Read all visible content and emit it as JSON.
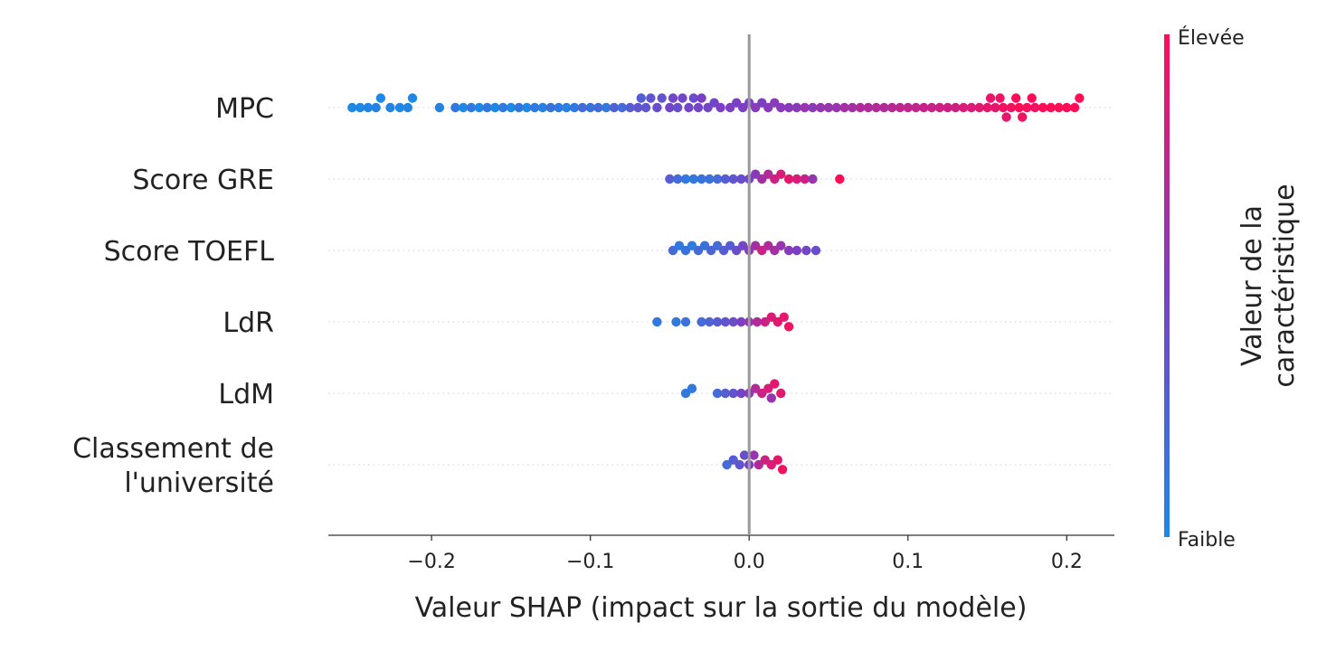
{
  "chart_data": {
    "type": "scatter",
    "subtype": "shap-beeswarm",
    "xlabel": "Valeur SHAP (impact sur la sortie du modèle)",
    "xlim": [
      -0.265,
      0.23
    ],
    "xticks": [
      -0.2,
      -0.1,
      0.0,
      0.1,
      0.2
    ],
    "xtick_labels": [
      "−0.2",
      "−0.1",
      "0.0",
      "0.1",
      "0.2"
    ],
    "zero_line": true,
    "grid": false,
    "colorbar": {
      "title_lines": [
        "Valeur de la",
        "caractéristique"
      ],
      "high_label": "Élevée",
      "low_label": "Faible",
      "low_color": "#1E88E5",
      "mid_color": "#7C3FC4",
      "high_color": "#FF0D57"
    },
    "features": [
      {
        "label_lines": [
          "MPC"
        ],
        "points": [
          [
            -0.25,
            0.0
          ],
          [
            -0.245,
            0.0
          ],
          [
            -0.24,
            0.02
          ],
          [
            -0.235,
            0.05
          ],
          [
            -0.232,
            0.0
          ],
          [
            -0.226,
            0.02
          ],
          [
            -0.22,
            0.0
          ],
          [
            -0.215,
            0.03
          ],
          [
            -0.212,
            0.0
          ],
          [
            -0.195,
            0.05
          ],
          [
            -0.185,
            0.1
          ],
          [
            -0.18,
            0.0
          ],
          [
            -0.175,
            0.1
          ],
          [
            -0.17,
            0.0
          ],
          [
            -0.165,
            0.1
          ],
          [
            -0.16,
            0.0
          ],
          [
            -0.155,
            0.1
          ],
          [
            -0.15,
            0.0
          ],
          [
            -0.145,
            0.12
          ],
          [
            -0.14,
            0.0
          ],
          [
            -0.135,
            0.1
          ],
          [
            -0.13,
            0.05
          ],
          [
            -0.125,
            0.15
          ],
          [
            -0.12,
            0.1
          ],
          [
            -0.115,
            0.05
          ],
          [
            -0.11,
            0.1
          ],
          [
            -0.105,
            0.2
          ],
          [
            -0.1,
            0.15
          ],
          [
            -0.095,
            0.2
          ],
          [
            -0.09,
            0.1
          ],
          [
            -0.085,
            0.25
          ],
          [
            -0.08,
            0.2
          ],
          [
            -0.075,
            0.3
          ],
          [
            -0.07,
            0.35
          ],
          [
            -0.068,
            0.3
          ],
          [
            -0.065,
            0.35
          ],
          [
            -0.062,
            0.35
          ],
          [
            -0.058,
            0.4
          ],
          [
            -0.055,
            0.35
          ],
          [
            -0.05,
            0.45
          ],
          [
            -0.048,
            0.45
          ],
          [
            -0.045,
            0.4
          ],
          [
            -0.042,
            0.45
          ],
          [
            -0.038,
            0.45
          ],
          [
            -0.035,
            0.4
          ],
          [
            -0.032,
            0.45
          ],
          [
            -0.03,
            0.5
          ],
          [
            -0.026,
            0.45
          ],
          [
            -0.022,
            0.45
          ],
          [
            -0.018,
            0.5
          ],
          [
            -0.012,
            0.5
          ],
          [
            -0.008,
            0.5
          ],
          [
            -0.004,
            0.5
          ],
          [
            0.0,
            0.5
          ],
          [
            0.004,
            0.55
          ],
          [
            0.008,
            0.5
          ],
          [
            0.012,
            0.55
          ],
          [
            0.016,
            0.55
          ],
          [
            0.02,
            0.55
          ],
          [
            0.025,
            0.55
          ],
          [
            0.03,
            0.55
          ],
          [
            0.035,
            0.6
          ],
          [
            0.04,
            0.55
          ],
          [
            0.045,
            0.6
          ],
          [
            0.05,
            0.6
          ],
          [
            0.055,
            0.6
          ],
          [
            0.06,
            0.65
          ],
          [
            0.065,
            0.65
          ],
          [
            0.07,
            0.7
          ],
          [
            0.075,
            0.7
          ],
          [
            0.08,
            0.7
          ],
          [
            0.085,
            0.7
          ],
          [
            0.09,
            0.72
          ],
          [
            0.095,
            0.75
          ],
          [
            0.1,
            0.75
          ],
          [
            0.105,
            0.75
          ],
          [
            0.11,
            0.78
          ],
          [
            0.115,
            0.78
          ],
          [
            0.12,
            0.8
          ],
          [
            0.125,
            0.8
          ],
          [
            0.13,
            0.8
          ],
          [
            0.135,
            0.85
          ],
          [
            0.14,
            0.85
          ],
          [
            0.145,
            0.88
          ],
          [
            0.15,
            0.9
          ],
          [
            0.152,
            0.92
          ],
          [
            0.155,
            0.9
          ],
          [
            0.158,
            0.95
          ],
          [
            0.16,
            0.95
          ],
          [
            0.162,
            0.9
          ],
          [
            0.165,
            0.95
          ],
          [
            0.168,
            0.98
          ],
          [
            0.17,
            1.0
          ],
          [
            0.172,
            0.95
          ],
          [
            0.175,
            0.98
          ],
          [
            0.178,
            1.0
          ],
          [
            0.18,
            0.95
          ],
          [
            0.185,
            1.0
          ],
          [
            0.19,
            1.0
          ],
          [
            0.195,
            1.0
          ],
          [
            0.2,
            1.0
          ],
          [
            0.205,
            1.0
          ],
          [
            0.208,
            1.0
          ]
        ]
      },
      {
        "label_lines": [
          "Score GRE"
        ],
        "points": [
          [
            -0.05,
            0.3
          ],
          [
            -0.045,
            0.2
          ],
          [
            -0.04,
            0.1
          ],
          [
            -0.035,
            0.1
          ],
          [
            -0.03,
            0.15
          ],
          [
            -0.025,
            0.15
          ],
          [
            -0.02,
            0.2
          ],
          [
            -0.015,
            0.3
          ],
          [
            -0.01,
            0.35
          ],
          [
            -0.005,
            0.4
          ],
          [
            0.0,
            0.45
          ],
          [
            0.004,
            0.55
          ],
          [
            0.008,
            0.65
          ],
          [
            0.012,
            0.7
          ],
          [
            0.016,
            0.8
          ],
          [
            0.02,
            0.85
          ],
          [
            0.025,
            0.9
          ],
          [
            0.03,
            0.85
          ],
          [
            0.035,
            0.8
          ],
          [
            0.04,
            0.6
          ],
          [
            0.057,
            1.0
          ]
        ]
      },
      {
        "label_lines": [
          "Score TOEFL"
        ],
        "points": [
          [
            -0.048,
            0.2
          ],
          [
            -0.044,
            0.1
          ],
          [
            -0.04,
            0.15
          ],
          [
            -0.036,
            0.1
          ],
          [
            -0.032,
            0.2
          ],
          [
            -0.028,
            0.15
          ],
          [
            -0.024,
            0.25
          ],
          [
            -0.02,
            0.2
          ],
          [
            -0.016,
            0.3
          ],
          [
            -0.012,
            0.3
          ],
          [
            -0.008,
            0.4
          ],
          [
            -0.004,
            0.45
          ],
          [
            0.0,
            0.55
          ],
          [
            0.004,
            0.65
          ],
          [
            0.008,
            0.8
          ],
          [
            0.012,
            0.7
          ],
          [
            0.016,
            0.65
          ],
          [
            0.02,
            0.6
          ],
          [
            0.025,
            0.55
          ],
          [
            0.03,
            0.5
          ],
          [
            0.036,
            0.45
          ],
          [
            0.042,
            0.4
          ]
        ]
      },
      {
        "label_lines": [
          "LdR"
        ],
        "points": [
          [
            -0.058,
            0.1
          ],
          [
            -0.046,
            0.1
          ],
          [
            -0.04,
            0.15
          ],
          [
            -0.03,
            0.2
          ],
          [
            -0.025,
            0.25
          ],
          [
            -0.02,
            0.3
          ],
          [
            -0.015,
            0.35
          ],
          [
            -0.01,
            0.4
          ],
          [
            -0.005,
            0.5
          ],
          [
            0.0,
            0.6
          ],
          [
            0.005,
            0.7
          ],
          [
            0.01,
            0.8
          ],
          [
            0.014,
            0.85
          ],
          [
            0.018,
            0.9
          ],
          [
            0.022,
            0.9
          ],
          [
            0.025,
            0.95
          ]
        ]
      },
      {
        "label_lines": [
          "LdM"
        ],
        "points": [
          [
            -0.04,
            0.1
          ],
          [
            -0.036,
            0.1
          ],
          [
            -0.02,
            0.2
          ],
          [
            -0.015,
            0.3
          ],
          [
            -0.01,
            0.35
          ],
          [
            -0.005,
            0.45
          ],
          [
            0.0,
            0.55
          ],
          [
            0.004,
            0.7
          ],
          [
            0.008,
            0.8
          ],
          [
            0.012,
            0.85
          ],
          [
            0.016,
            0.9
          ],
          [
            0.02,
            0.9
          ],
          [
            0.014,
            0.6
          ]
        ]
      },
      {
        "label_lines": [
          "Classement de",
          "l'université"
        ],
        "points": [
          [
            -0.014,
            0.2
          ],
          [
            -0.01,
            0.3
          ],
          [
            -0.006,
            0.35
          ],
          [
            -0.003,
            0.4
          ],
          [
            0.0,
            0.5
          ],
          [
            0.003,
            0.6
          ],
          [
            0.006,
            0.7
          ],
          [
            0.01,
            0.8
          ],
          [
            0.014,
            0.85
          ],
          [
            0.018,
            0.9
          ],
          [
            0.021,
            0.95
          ]
        ]
      }
    ]
  }
}
